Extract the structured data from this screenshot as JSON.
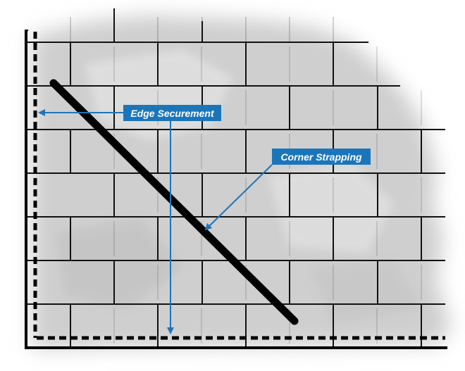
{
  "frame": {
    "border_color": "#1b75bb"
  },
  "figure": {
    "background_color": "#ffffff",
    "smoke_color": "#cfcfcf",
    "mortar_color": "#111111",
    "wall_line_color": "#000000",
    "strap_color": "#000000",
    "callout_color": "#1b75bb",
    "label_text_color": "#ffffff"
  },
  "labels": {
    "edge_securement": "Edge Securement",
    "corner_strapping": "Corner Strapping"
  }
}
